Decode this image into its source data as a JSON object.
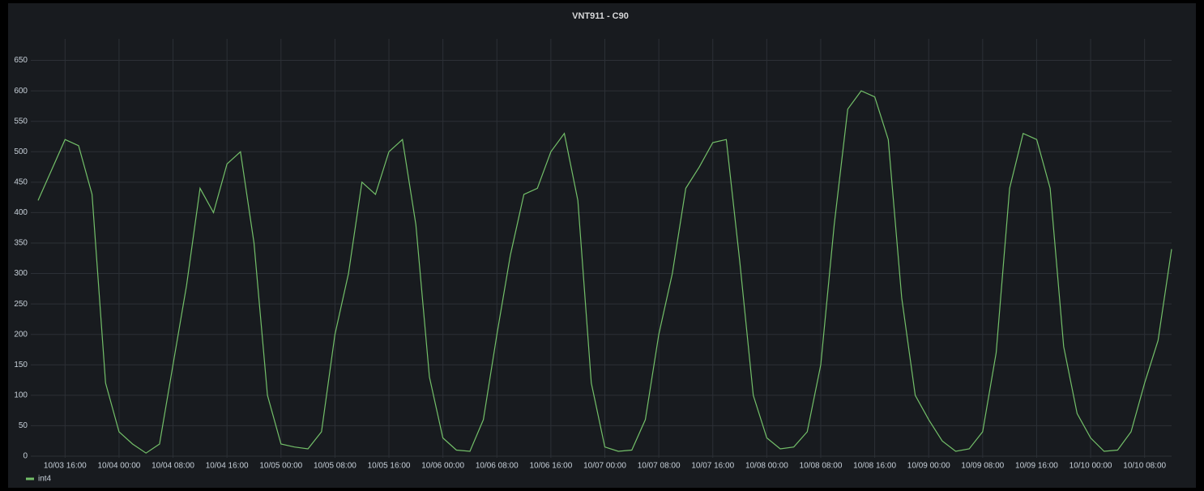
{
  "chart_data": {
    "type": "line",
    "title": "VNT911 - C90",
    "x": [
      "10/03 12:00",
      "10/03 14:00",
      "10/03 16:00",
      "10/03 18:00",
      "10/03 20:00",
      "10/03 22:00",
      "10/04 00:00",
      "10/04 02:00",
      "10/04 04:00",
      "10/04 06:00",
      "10/04 08:00",
      "10/04 10:00",
      "10/04 12:00",
      "10/04 14:00",
      "10/04 16:00",
      "10/04 18:00",
      "10/04 20:00",
      "10/04 22:00",
      "10/05 00:00",
      "10/05 02:00",
      "10/05 04:00",
      "10/05 06:00",
      "10/05 08:00",
      "10/05 10:00",
      "10/05 12:00",
      "10/05 14:00",
      "10/05 16:00",
      "10/05 18:00",
      "10/05 20:00",
      "10/05 22:00",
      "10/06 00:00",
      "10/06 02:00",
      "10/06 04:00",
      "10/06 06:00",
      "10/06 08:00",
      "10/06 10:00",
      "10/06 12:00",
      "10/06 14:00",
      "10/06 16:00",
      "10/06 18:00",
      "10/06 20:00",
      "10/06 22:00",
      "10/07 00:00",
      "10/07 02:00",
      "10/07 04:00",
      "10/07 06:00",
      "10/07 08:00",
      "10/07 10:00",
      "10/07 12:00",
      "10/07 14:00",
      "10/07 16:00",
      "10/07 18:00",
      "10/07 20:00",
      "10/07 22:00",
      "10/08 00:00",
      "10/08 02:00",
      "10/08 04:00",
      "10/08 06:00",
      "10/08 08:00",
      "10/08 10:00",
      "10/08 12:00",
      "10/08 14:00",
      "10/08 16:00",
      "10/08 18:00",
      "10/08 20:00",
      "10/08 22:00",
      "10/09 00:00",
      "10/09 02:00",
      "10/09 04:00",
      "10/09 06:00",
      "10/09 08:00",
      "10/09 10:00",
      "10/09 12:00",
      "10/09 14:00",
      "10/09 16:00",
      "10/09 18:00",
      "10/09 20:00",
      "10/09 22:00",
      "10/10 00:00",
      "10/10 02:00",
      "10/10 04:00",
      "10/10 06:00",
      "10/10 08:00",
      "10/10 10:00",
      "10/10 12:00"
    ],
    "series": [
      {
        "name": "int4",
        "color": "#73bf69",
        "values": [
          420,
          470,
          520,
          510,
          430,
          120,
          40,
          20,
          5,
          20,
          150,
          280,
          440,
          400,
          480,
          500,
          350,
          100,
          20,
          15,
          12,
          40,
          200,
          300,
          450,
          430,
          500,
          520,
          380,
          130,
          30,
          10,
          8,
          60,
          200,
          330,
          430,
          440,
          500,
          530,
          420,
          120,
          15,
          8,
          10,
          60,
          200,
          300,
          440,
          475,
          515,
          520,
          320,
          100,
          30,
          12,
          15,
          40,
          150,
          380,
          570,
          600,
          590,
          520,
          260,
          100,
          60,
          25,
          8,
          12,
          40,
          170,
          440,
          530,
          520,
          440,
          180,
          70,
          30,
          8,
          10,
          40,
          120,
          190,
          340
        ]
      }
    ],
    "xticks": [
      "10/03 16:00",
      "10/04 00:00",
      "10/04 08:00",
      "10/04 16:00",
      "10/05 00:00",
      "10/05 08:00",
      "10/05 16:00",
      "10/06 00:00",
      "10/06 08:00",
      "10/06 16:00",
      "10/07 00:00",
      "10/07 08:00",
      "10/07 16:00",
      "10/08 00:00",
      "10/08 08:00",
      "10/08 16:00",
      "10/09 00:00",
      "10/09 08:00",
      "10/09 16:00",
      "10/10 00:00",
      "10/10 08:00"
    ],
    "ylim": [
      0,
      680
    ],
    "yticks": [
      0,
      50,
      100,
      150,
      200,
      250,
      300,
      350,
      400,
      450,
      500,
      550,
      600,
      650
    ],
    "grid": true
  }
}
